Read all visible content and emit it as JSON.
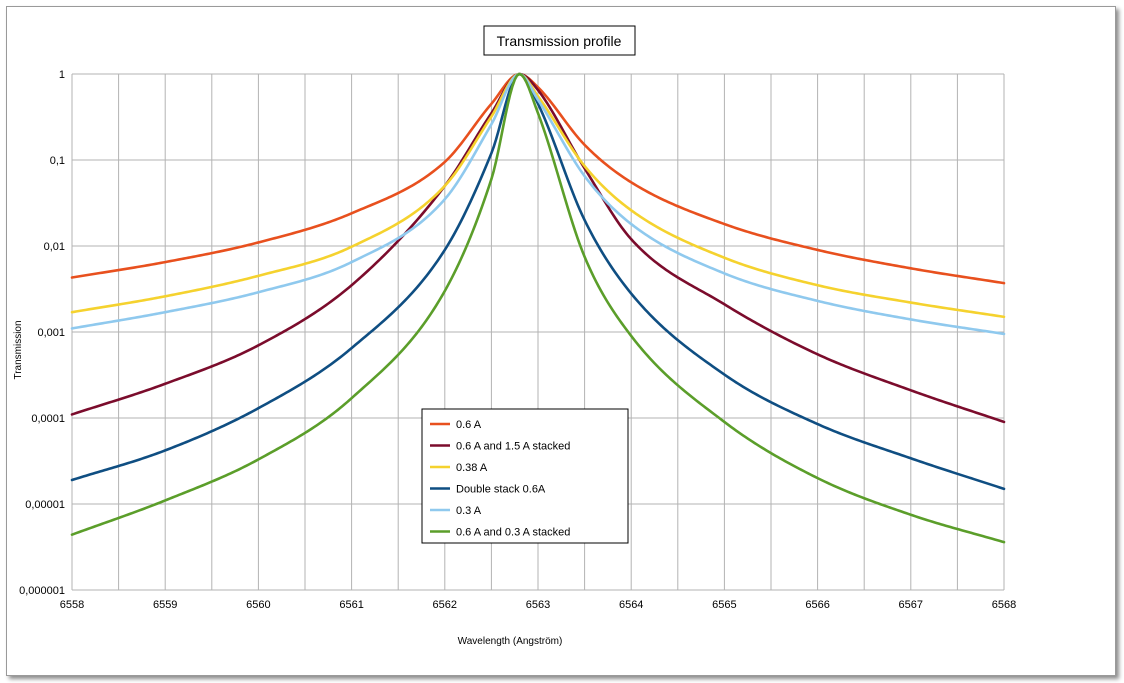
{
  "chart_data": {
    "type": "line",
    "title": "Transmission profile",
    "xlabel": "Wavelength (Angström)",
    "ylabel": "Transmission",
    "y_scale": "log",
    "xlim": [
      6558,
      6568
    ],
    "ylim": [
      1e-06,
      1
    ],
    "grid": true,
    "legend_position": "center-bottom",
    "x_ticks": [
      "6558",
      "6559",
      "6560",
      "6561",
      "6562",
      "6563",
      "6564",
      "6565",
      "6566",
      "6567",
      "6568"
    ],
    "y_ticks": [
      "0,000001",
      "0,00001",
      "0,0001",
      "0,001",
      "0,01",
      "0,1",
      "1"
    ],
    "x": [
      6558,
      6559,
      6560,
      6561,
      6562,
      6562.5,
      6562.8,
      6563,
      6563.5,
      6564,
      6565,
      6566,
      6567,
      6568
    ],
    "series": [
      {
        "name": "0.6 A",
        "color": "#e8501e",
        "values": [
          0.0043,
          0.0065,
          0.011,
          0.024,
          0.095,
          0.45,
          1.0,
          0.7,
          0.15,
          0.055,
          0.018,
          0.009,
          0.0055,
          0.0037
        ]
      },
      {
        "name": "0.6 A and 1.5 A stacked",
        "color": "#7b0c2c",
        "values": [
          0.00011,
          0.00025,
          0.0007,
          0.0035,
          0.05,
          0.35,
          1.0,
          0.65,
          0.08,
          0.012,
          0.0021,
          0.00055,
          0.00021,
          9e-05
        ]
      },
      {
        "name": "0.38 A",
        "color": "#f5d22e",
        "values": [
          0.0017,
          0.0026,
          0.0045,
          0.0098,
          0.05,
          0.32,
          1.0,
          0.55,
          0.085,
          0.026,
          0.0073,
          0.0035,
          0.0022,
          0.0015
        ]
      },
      {
        "name": "Double stack 0.6A",
        "color": "#0f4e82",
        "values": [
          1.9e-05,
          4.2e-05,
          0.00013,
          0.00065,
          0.009,
          0.12,
          1.0,
          0.45,
          0.02,
          0.0028,
          0.00032,
          8.5e-05,
          3.4e-05,
          1.5e-05
        ]
      },
      {
        "name": "0.3 A",
        "color": "#8fc9ee",
        "values": [
          0.0011,
          0.0017,
          0.0029,
          0.0065,
          0.035,
          0.26,
          1.0,
          0.5,
          0.065,
          0.018,
          0.0048,
          0.0023,
          0.0014,
          0.00095
        ]
      },
      {
        "name": "0.6 A and 0.3 A stacked",
        "color": "#5b9e2a",
        "values": [
          4.4e-06,
          1.1e-05,
          3.3e-05,
          0.00017,
          0.003,
          0.06,
          1.0,
          0.35,
          0.0075,
          0.0009,
          9e-05,
          2e-05,
          7.5e-06,
          3.6e-06
        ]
      }
    ]
  }
}
